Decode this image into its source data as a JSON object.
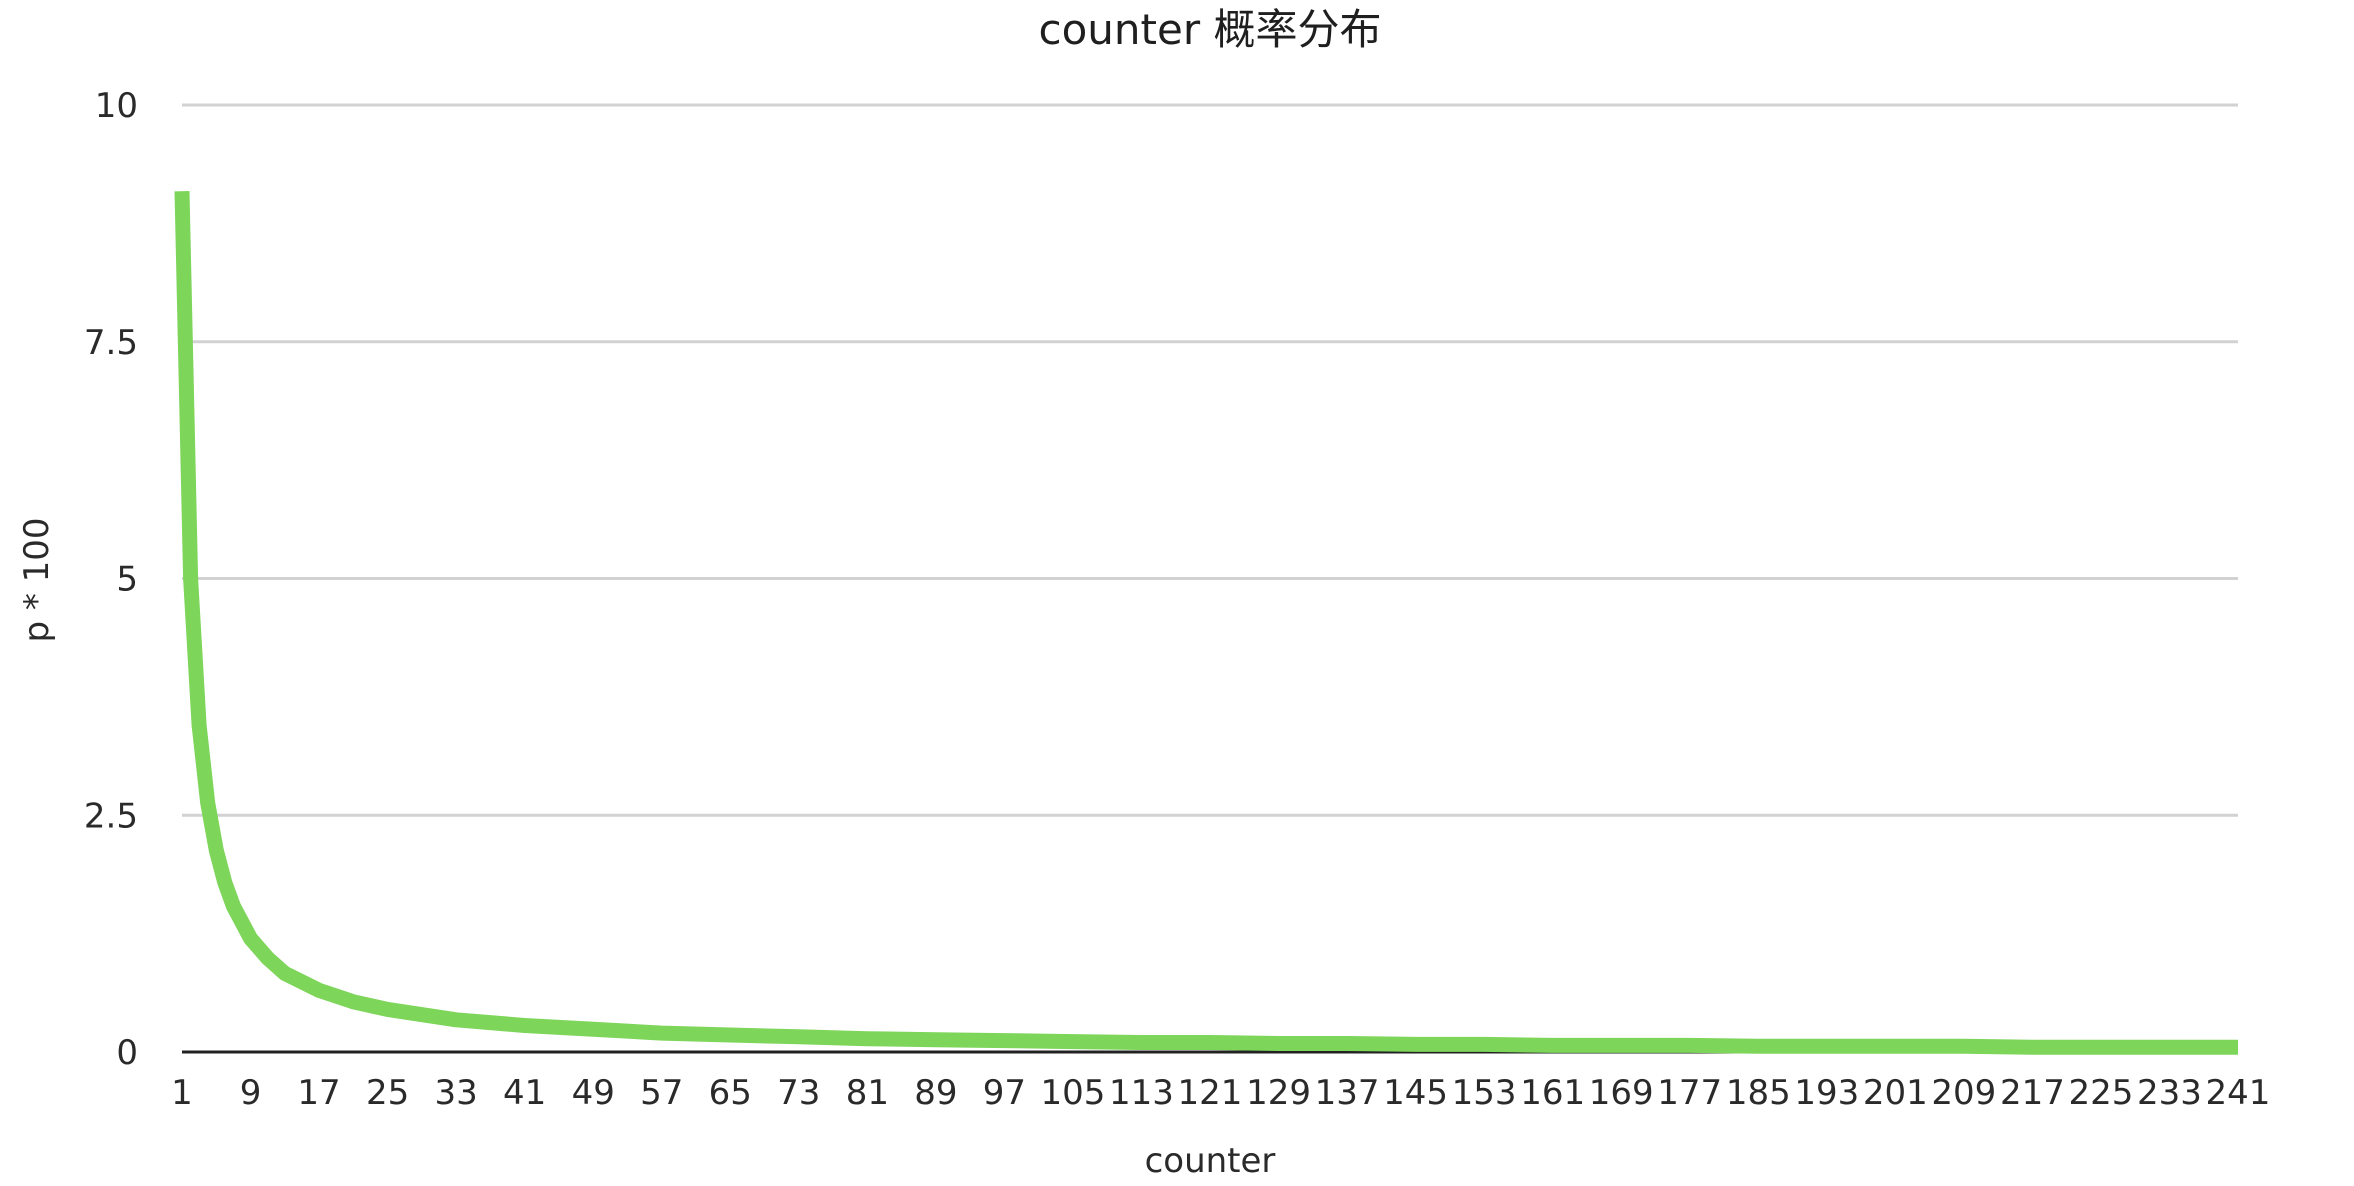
{
  "chart_data": {
    "type": "line",
    "title": "counter 概率分布",
    "xlabel": "counter",
    "ylabel": "p * 100",
    "ylim": [
      0,
      10
    ],
    "y_ticks": [
      "0",
      "2.5",
      "5",
      "7.5",
      "10"
    ],
    "x_ticks": [
      "1",
      "9",
      "17",
      "25",
      "33",
      "41",
      "49",
      "57",
      "65",
      "73",
      "81",
      "89",
      "97",
      "105",
      "113",
      "121",
      "129",
      "137",
      "145",
      "153",
      "161",
      "169",
      "177",
      "185",
      "193",
      "201",
      "209",
      "217",
      "225",
      "233",
      "241"
    ],
    "x_range": [
      1,
      241
    ],
    "grid": "horizontal",
    "legend": "none",
    "series": [
      {
        "color": "#7dd55a",
        "x": [
          1,
          2,
          3,
          4,
          5,
          6,
          7,
          9,
          11,
          13,
          17,
          21,
          25,
          33,
          41,
          49,
          57,
          65,
          73,
          81,
          89,
          97,
          105,
          113,
          121,
          129,
          137,
          145,
          153,
          161,
          169,
          177,
          185,
          193,
          201,
          209,
          217,
          225,
          233,
          241
        ],
        "y": [
          9.09,
          5.0,
          3.45,
          2.63,
          2.13,
          1.79,
          1.54,
          1.2,
          0.99,
          0.83,
          0.65,
          0.53,
          0.45,
          0.34,
          0.28,
          0.24,
          0.2,
          0.18,
          0.16,
          0.14,
          0.13,
          0.12,
          0.11,
          0.1,
          0.1,
          0.09,
          0.09,
          0.08,
          0.08,
          0.07,
          0.07,
          0.07,
          0.06,
          0.06,
          0.06,
          0.06,
          0.05,
          0.05,
          0.05,
          0.05
        ]
      }
    ]
  }
}
